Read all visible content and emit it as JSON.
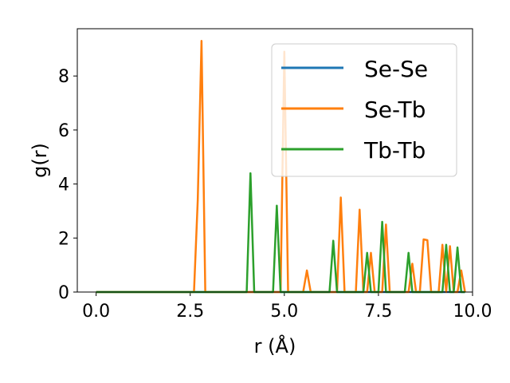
{
  "chart_data": {
    "type": "line",
    "title": "",
    "xlabel": "r (Å)",
    "ylabel": "g(r)",
    "xlim": [
      -0.5,
      10.0
    ],
    "ylim": [
      0,
      9.75
    ],
    "xticks": [
      "0.0",
      "2.5",
      "5.0",
      "7.5",
      "10.0"
    ],
    "yticks": [
      "0",
      "2",
      "4",
      "6",
      "8"
    ],
    "legend_position": "top-right",
    "series": [
      {
        "name": "Se-Se",
        "color": "#1f77b4",
        "x": [
          0.0,
          9.8
        ],
        "y": [
          0.0,
          0.0
        ]
      },
      {
        "name": "Se-Tb",
        "color": "#ff7f0e",
        "x": [
          0.0,
          2.6,
          2.7,
          2.8,
          2.9,
          4.9,
          5.0,
          5.1,
          5.5,
          5.6,
          5.7,
          6.4,
          6.5,
          6.6,
          6.9,
          7.0,
          7.1,
          7.2,
          7.3,
          7.4,
          7.6,
          7.7,
          7.8,
          8.3,
          8.4,
          8.5,
          8.6,
          8.7,
          8.8,
          8.9,
          9.1,
          9.2,
          9.3,
          9.4,
          9.5,
          9.6,
          9.7,
          9.8
        ],
        "y": [
          0.0,
          0.0,
          3.4,
          9.3,
          0.0,
          0.0,
          8.9,
          0.0,
          0.0,
          0.8,
          0.0,
          0.0,
          3.5,
          0.0,
          0.0,
          3.05,
          0.0,
          0.0,
          1.45,
          0.0,
          0.0,
          2.5,
          0.0,
          0.0,
          1.05,
          0.0,
          0.0,
          1.95,
          1.92,
          0.0,
          0.0,
          1.75,
          0.0,
          1.7,
          0.0,
          0.0,
          0.8,
          0.0
        ]
      },
      {
        "name": "Tb-Tb",
        "color": "#2ca02c",
        "x": [
          0.0,
          4.0,
          4.1,
          4.2,
          4.7,
          4.8,
          4.9,
          6.2,
          6.3,
          6.4,
          7.1,
          7.2,
          7.3,
          7.5,
          7.6,
          7.7,
          8.2,
          8.3,
          8.4,
          9.2,
          9.3,
          9.4,
          9.5,
          9.6,
          9.7,
          9.8
        ],
        "y": [
          0.0,
          0.0,
          4.4,
          0.0,
          0.0,
          3.2,
          0.0,
          0.0,
          1.9,
          0.0,
          0.0,
          1.45,
          0.0,
          0.0,
          2.6,
          0.0,
          0.0,
          1.45,
          0.0,
          0.0,
          1.75,
          0.0,
          0.0,
          1.65,
          0.0,
          0.0
        ]
      }
    ]
  }
}
